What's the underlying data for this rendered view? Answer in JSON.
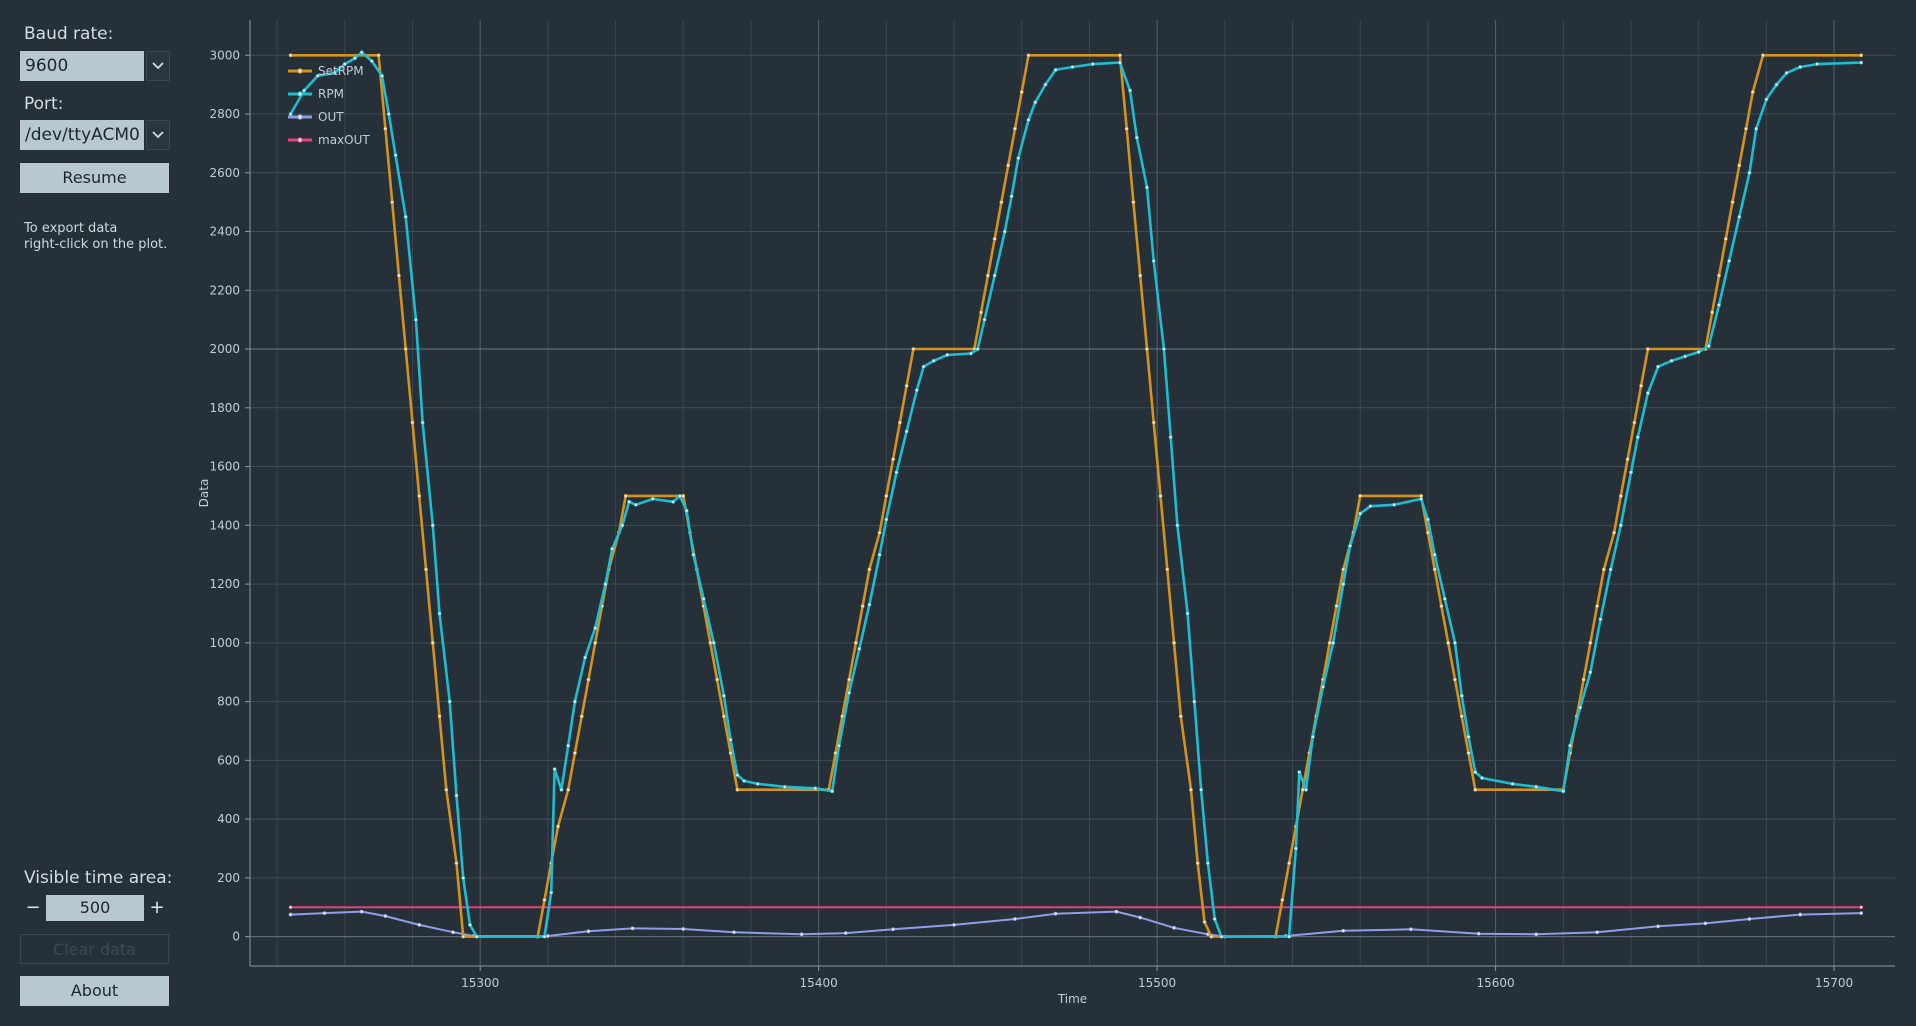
{
  "sidebar": {
    "baud_label": "Baud rate:",
    "baud_value": "9600",
    "port_label": "Port:",
    "port_value": "/dev/ttyACM0",
    "resume_label": "Resume",
    "hint": "To export data\nright-click on the plot.",
    "visible_label": "Visible time area:",
    "visible_value": "500",
    "minus": "−",
    "plus": "+",
    "clear_label": "Clear data",
    "about_label": "About"
  },
  "icons": {
    "combo_arrow": "chevron-down-icon"
  },
  "colors": {
    "background": "#263039",
    "setrpm": "#d4921e",
    "rpm": "#1fbcd2",
    "out": "#8f9ee8",
    "maxout": "#e8407a"
  },
  "chart_data": {
    "type": "line",
    "xlabel": "Time",
    "ylabel": "Data",
    "xlim": [
      15232,
      15718
    ],
    "ylim": [
      -100,
      3120
    ],
    "xticks": [
      15300,
      15400,
      15500,
      15600,
      15700
    ],
    "yticks": [
      0,
      200,
      400,
      600,
      800,
      1000,
      1200,
      1400,
      1600,
      1800,
      2000,
      2200,
      2400,
      2600,
      2800,
      3000
    ],
    "grid": true,
    "legend_position": "top-left",
    "series": [
      {
        "name": "SetRPM",
        "points": [
          [
            15244,
            3000
          ],
          [
            15270,
            3000
          ],
          [
            15272,
            2750
          ],
          [
            15274,
            2500
          ],
          [
            15276,
            2250
          ],
          [
            15278,
            2000
          ],
          [
            15280,
            1750
          ],
          [
            15282,
            1500
          ],
          [
            15284,
            1250
          ],
          [
            15286,
            1000
          ],
          [
            15288,
            750
          ],
          [
            15290,
            500
          ],
          [
            15293,
            250
          ],
          [
            15295,
            0
          ],
          [
            15317,
            0
          ],
          [
            15319,
            125
          ],
          [
            15321,
            250
          ],
          [
            15323,
            375
          ],
          [
            15326,
            500
          ],
          [
            15328,
            625
          ],
          [
            15330,
            750
          ],
          [
            15332,
            875
          ],
          [
            15334,
            1000
          ],
          [
            15336,
            1125
          ],
          [
            15338,
            1250
          ],
          [
            15341,
            1375
          ],
          [
            15343,
            1500
          ],
          [
            15360,
            1500
          ],
          [
            15362,
            1375
          ],
          [
            15364,
            1250
          ],
          [
            15366,
            1125
          ],
          [
            15368,
            1000
          ],
          [
            15370,
            875
          ],
          [
            15372,
            750
          ],
          [
            15374,
            625
          ],
          [
            15376,
            500
          ],
          [
            15403,
            500
          ],
          [
            15405,
            625
          ],
          [
            15407,
            750
          ],
          [
            15409,
            875
          ],
          [
            15411,
            1000
          ],
          [
            15413,
            1125
          ],
          [
            15415,
            1250
          ],
          [
            15418,
            1375
          ],
          [
            15420,
            1500
          ],
          [
            15422,
            1625
          ],
          [
            15424,
            1750
          ],
          [
            15426,
            1875
          ],
          [
            15428,
            2000
          ],
          [
            15446,
            2000
          ],
          [
            15448,
            2125
          ],
          [
            15450,
            2250
          ],
          [
            15452,
            2375
          ],
          [
            15454,
            2500
          ],
          [
            15456,
            2625
          ],
          [
            15458,
            2750
          ],
          [
            15460,
            2875
          ],
          [
            15462,
            3000
          ],
          [
            15489,
            3000
          ],
          [
            15491,
            2750
          ],
          [
            15493,
            2500
          ],
          [
            15495,
            2250
          ],
          [
            15497,
            2000
          ],
          [
            15499,
            1750
          ],
          [
            15501,
            1500
          ],
          [
            15503,
            1250
          ],
          [
            15505,
            1000
          ],
          [
            15507,
            750
          ],
          [
            15510,
            500
          ],
          [
            15512,
            250
          ],
          [
            15514,
            50
          ],
          [
            15516,
            0
          ],
          [
            15535,
            0
          ],
          [
            15537,
            125
          ],
          [
            15539,
            250
          ],
          [
            15541,
            375
          ],
          [
            15543,
            500
          ],
          [
            15545,
            625
          ],
          [
            15547,
            750
          ],
          [
            15549,
            875
          ],
          [
            15551,
            1000
          ],
          [
            15553,
            1125
          ],
          [
            15555,
            1250
          ],
          [
            15558,
            1375
          ],
          [
            15560,
            1500
          ],
          [
            15578,
            1500
          ],
          [
            15580,
            1375
          ],
          [
            15582,
            1250
          ],
          [
            15584,
            1125
          ],
          [
            15586,
            1000
          ],
          [
            15588,
            875
          ],
          [
            15590,
            750
          ],
          [
            15592,
            625
          ],
          [
            15594,
            500
          ],
          [
            15620,
            500
          ],
          [
            15622,
            625
          ],
          [
            15624,
            750
          ],
          [
            15626,
            875
          ],
          [
            15628,
            1000
          ],
          [
            15630,
            1125
          ],
          [
            15632,
            1250
          ],
          [
            15635,
            1375
          ],
          [
            15637,
            1500
          ],
          [
            15639,
            1625
          ],
          [
            15641,
            1750
          ],
          [
            15643,
            1875
          ],
          [
            15645,
            2000
          ],
          [
            15662,
            2000
          ],
          [
            15664,
            2125
          ],
          [
            15666,
            2250
          ],
          [
            15668,
            2375
          ],
          [
            15670,
            2500
          ],
          [
            15672,
            2625
          ],
          [
            15674,
            2750
          ],
          [
            15676,
            2875
          ],
          [
            15679,
            3000
          ],
          [
            15708,
            3000
          ]
        ]
      },
      {
        "name": "RPM",
        "points": [
          [
            15244,
            2800
          ],
          [
            15248,
            2880
          ],
          [
            15252,
            2930
          ],
          [
            15257,
            2940
          ],
          [
            15260,
            2970
          ],
          [
            15263,
            2990
          ],
          [
            15265,
            3010
          ],
          [
            15268,
            2980
          ],
          [
            15271,
            2930
          ],
          [
            15273,
            2800
          ],
          [
            15275,
            2660
          ],
          [
            15278,
            2450
          ],
          [
            15281,
            2100
          ],
          [
            15283,
            1750
          ],
          [
            15286,
            1400
          ],
          [
            15288,
            1100
          ],
          [
            15291,
            800
          ],
          [
            15293,
            480
          ],
          [
            15295,
            200
          ],
          [
            15297,
            40
          ],
          [
            15299,
            0
          ],
          [
            15319,
            0
          ],
          [
            15321,
            150
          ],
          [
            15322,
            570
          ],
          [
            15324,
            500
          ],
          [
            15326,
            650
          ],
          [
            15328,
            800
          ],
          [
            15331,
            950
          ],
          [
            15334,
            1050
          ],
          [
            15337,
            1200
          ],
          [
            15339,
            1320
          ],
          [
            15342,
            1400
          ],
          [
            15344,
            1480
          ],
          [
            15346,
            1470
          ],
          [
            15351,
            1490
          ],
          [
            15357,
            1480
          ],
          [
            15359,
            1500
          ],
          [
            15361,
            1450
          ],
          [
            15363,
            1300
          ],
          [
            15366,
            1150
          ],
          [
            15369,
            1000
          ],
          [
            15372,
            820
          ],
          [
            15374,
            670
          ],
          [
            15376,
            550
          ],
          [
            15378,
            530
          ],
          [
            15382,
            520
          ],
          [
            15390,
            510
          ],
          [
            15399,
            505
          ],
          [
            15404,
            495
          ],
          [
            15406,
            650
          ],
          [
            15409,
            830
          ],
          [
            15412,
            980
          ],
          [
            15415,
            1130
          ],
          [
            15418,
            1300
          ],
          [
            15420,
            1420
          ],
          [
            15423,
            1580
          ],
          [
            15426,
            1720
          ],
          [
            15429,
            1860
          ],
          [
            15431,
            1940
          ],
          [
            15434,
            1960
          ],
          [
            15438,
            1980
          ],
          [
            15445,
            1985
          ],
          [
            15447,
            2000
          ],
          [
            15449,
            2100
          ],
          [
            15452,
            2250
          ],
          [
            15455,
            2400
          ],
          [
            15457,
            2520
          ],
          [
            15459,
            2650
          ],
          [
            15462,
            2780
          ],
          [
            15464,
            2840
          ],
          [
            15467,
            2900
          ],
          [
            15470,
            2950
          ],
          [
            15475,
            2960
          ],
          [
            15481,
            2970
          ],
          [
            15489,
            2975
          ],
          [
            15492,
            2880
          ],
          [
            15494,
            2720
          ],
          [
            15497,
            2550
          ],
          [
            15499,
            2300
          ],
          [
            15502,
            2000
          ],
          [
            15504,
            1700
          ],
          [
            15506,
            1400
          ],
          [
            15509,
            1100
          ],
          [
            15511,
            800
          ],
          [
            15513,
            500
          ],
          [
            15515,
            250
          ],
          [
            15517,
            60
          ],
          [
            15519,
            0
          ],
          [
            15539,
            0
          ],
          [
            15541,
            300
          ],
          [
            15542,
            560
          ],
          [
            15544,
            500
          ],
          [
            15546,
            680
          ],
          [
            15549,
            850
          ],
          [
            15552,
            1000
          ],
          [
            15555,
            1200
          ],
          [
            15557,
            1330
          ],
          [
            15560,
            1440
          ],
          [
            15563,
            1465
          ],
          [
            15570,
            1470
          ],
          [
            15578,
            1490
          ],
          [
            15580,
            1420
          ],
          [
            15582,
            1300
          ],
          [
            15585,
            1150
          ],
          [
            15588,
            1000
          ],
          [
            15590,
            820
          ],
          [
            15592,
            680
          ],
          [
            15594,
            560
          ],
          [
            15596,
            540
          ],
          [
            15605,
            520
          ],
          [
            15612,
            510
          ],
          [
            15620,
            495
          ],
          [
            15622,
            650
          ],
          [
            15625,
            780
          ],
          [
            15628,
            900
          ],
          [
            15631,
            1080
          ],
          [
            15634,
            1250
          ],
          [
            15637,
            1400
          ],
          [
            15640,
            1580
          ],
          [
            15642,
            1700
          ],
          [
            15645,
            1850
          ],
          [
            15648,
            1940
          ],
          [
            15652,
            1960
          ],
          [
            15656,
            1975
          ],
          [
            15660,
            1990
          ],
          [
            15663,
            2010
          ],
          [
            15666,
            2150
          ],
          [
            15669,
            2300
          ],
          [
            15672,
            2450
          ],
          [
            15675,
            2600
          ],
          [
            15677,
            2750
          ],
          [
            15680,
            2850
          ],
          [
            15683,
            2900
          ],
          [
            15686,
            2940
          ],
          [
            15690,
            2960
          ],
          [
            15695,
            2970
          ],
          [
            15708,
            2975
          ]
        ]
      },
      {
        "name": "OUT",
        "points": [
          [
            15244,
            75
          ],
          [
            15254,
            80
          ],
          [
            15265,
            85
          ],
          [
            15272,
            70
          ],
          [
            15282,
            40
          ],
          [
            15292,
            15
          ],
          [
            15298,
            2
          ],
          [
            15320,
            2
          ],
          [
            15332,
            18
          ],
          [
            15345,
            28
          ],
          [
            15360,
            26
          ],
          [
            15375,
            15
          ],
          [
            15395,
            8
          ],
          [
            15408,
            12
          ],
          [
            15422,
            25
          ],
          [
            15440,
            40
          ],
          [
            15458,
            60
          ],
          [
            15470,
            78
          ],
          [
            15488,
            85
          ],
          [
            15495,
            65
          ],
          [
            15505,
            30
          ],
          [
            15515,
            8
          ],
          [
            15520,
            0
          ],
          [
            15538,
            2
          ],
          [
            15555,
            20
          ],
          [
            15575,
            25
          ],
          [
            15595,
            10
          ],
          [
            15612,
            8
          ],
          [
            15630,
            15
          ],
          [
            15648,
            35
          ],
          [
            15662,
            45
          ],
          [
            15675,
            60
          ],
          [
            15690,
            75
          ],
          [
            15708,
            80
          ]
        ]
      },
      {
        "name": "maxOUT",
        "points": [
          [
            15244,
            100
          ],
          [
            15708,
            100
          ]
        ]
      }
    ]
  }
}
